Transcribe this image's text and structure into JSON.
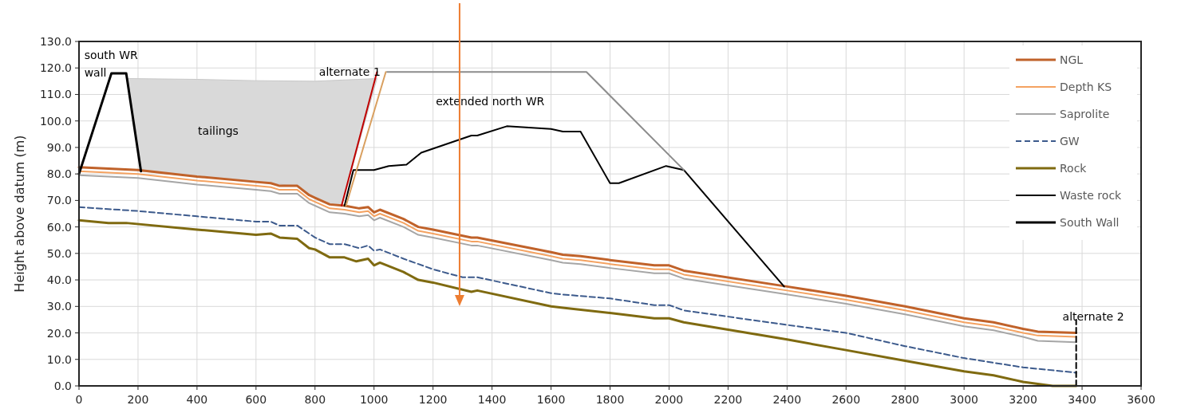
{
  "chart_data": {
    "type": "line",
    "ylabel": "Height above datum (m)",
    "xlim": [
      0,
      3600
    ],
    "ylim": [
      0,
      130
    ],
    "xticks": [
      0,
      200,
      400,
      600,
      800,
      1000,
      1200,
      1400,
      1600,
      1800,
      2000,
      2200,
      2400,
      2600,
      2800,
      3000,
      3200,
      3400,
      3600
    ],
    "yticks": [
      {
        "value": 0,
        "label": "0.0"
      },
      {
        "value": 10,
        "label": "10.0"
      },
      {
        "value": 20,
        "label": "20.0"
      },
      {
        "value": 30,
        "label": "30.0"
      },
      {
        "value": 40,
        "label": "40.0"
      },
      {
        "value": 50,
        "label": "50.0"
      },
      {
        "value": 60,
        "label": "60.0"
      },
      {
        "value": 70,
        "label": "70.0"
      },
      {
        "value": 80,
        "label": "80.0"
      },
      {
        "value": 90,
        "label": "90.0"
      },
      {
        "value": 100,
        "label": "100.0"
      },
      {
        "value": 110,
        "label": "110.0"
      },
      {
        "value": 120,
        "label": "120.0"
      },
      {
        "value": 130,
        "label": "130.0"
      }
    ],
    "grid": true,
    "legend": "top right",
    "line_style": "solid",
    "marker": "none",
    "series": [
      {
        "type": "area",
        "color": "#d9d9d9",
        "x": [
          165,
          400,
          600,
          800,
          1010,
          890,
          850,
          800,
          740,
          600,
          400,
          210
        ],
        "values": [
          116,
          115.7,
          115.2,
          115,
          116,
          68,
          68.5,
          71,
          75.5,
          77,
          79,
          81
        ]
      },
      {
        "name": "NGL",
        "color": "#c0622a",
        "x": [
          0,
          200,
          400,
          600,
          650,
          680,
          740,
          780,
          800,
          850,
          900,
          950,
          980,
          1000,
          1020,
          1100,
          1150,
          1200,
          1330,
          1350,
          1600,
          1640,
          1700,
          1800,
          1950,
          2000,
          2050,
          2400,
          2600,
          2800,
          3000,
          3100,
          3200,
          3250,
          3380
        ],
        "values": [
          82.5,
          81.5,
          79,
          77,
          76.5,
          75.5,
          75.5,
          72,
          71,
          68.5,
          68,
          67,
          67.5,
          65.5,
          66.5,
          63,
          60,
          59,
          56,
          56,
          50.5,
          49.5,
          49,
          47.5,
          45.5,
          45.5,
          43.5,
          37.5,
          34,
          30,
          25.5,
          24,
          21.5,
          20.5,
          20
        ]
      },
      {
        "name": "Depth KS",
        "color": "#f4a261",
        "x": [
          0,
          200,
          400,
          600,
          650,
          680,
          740,
          780,
          800,
          850,
          900,
          950,
          980,
          1000,
          1020,
          1100,
          1150,
          1200,
          1330,
          1350,
          1600,
          1640,
          1700,
          1800,
          1950,
          2000,
          2050,
          2400,
          2600,
          2800,
          3000,
          3100,
          3200,
          3250,
          3380
        ],
        "values": [
          81,
          80,
          77.5,
          75.5,
          75,
          74,
          74,
          70.5,
          69.5,
          67,
          66.5,
          65.5,
          66,
          64,
          65,
          61.5,
          58.5,
          57.5,
          54.5,
          54.5,
          49,
          48,
          47.5,
          46,
          44,
          44,
          42,
          36,
          32.5,
          28.5,
          24,
          22.5,
          20,
          19,
          18.5
        ]
      },
      {
        "name": "Saprolite",
        "color": "#a6a6a6",
        "x": [
          0,
          200,
          400,
          600,
          650,
          680,
          740,
          780,
          800,
          850,
          900,
          950,
          980,
          1000,
          1020,
          1100,
          1150,
          1200,
          1330,
          1350,
          1600,
          1640,
          1700,
          1800,
          1950,
          2000,
          2050,
          2400,
          2600,
          2800,
          3000,
          3100,
          3200,
          3250,
          3380
        ],
        "values": [
          79.5,
          78.5,
          76,
          74,
          73.5,
          72.5,
          72.5,
          69,
          68,
          65.5,
          65,
          64,
          64.5,
          62.5,
          63.5,
          60,
          57,
          56,
          53,
          53,
          47.5,
          46.5,
          46,
          44.5,
          42.5,
          42.5,
          40.5,
          34.5,
          31,
          27,
          22.5,
          21,
          18.5,
          17,
          16.5
        ]
      },
      {
        "name": "GW",
        "color": "#3c5a8c",
        "line_style": "dashed",
        "x": [
          0,
          200,
          400,
          600,
          650,
          680,
          740,
          800,
          850,
          900,
          950,
          980,
          1000,
          1020,
          1100,
          1200,
          1300,
          1350,
          1600,
          1640,
          1800,
          1950,
          2000,
          2050,
          2400,
          2600,
          2800,
          3000,
          3200,
          3380
        ],
        "values": [
          67.5,
          66,
          64,
          62,
          62,
          60.5,
          60.5,
          56,
          53.5,
          53.5,
          52,
          53,
          51,
          51.5,
          48,
          44,
          41,
          41,
          35,
          34.5,
          33,
          30.5,
          30.5,
          28.5,
          23,
          20,
          15,
          10.5,
          7,
          5
        ]
      },
      {
        "name": "Rock",
        "color": "#7f6a10",
        "x": [
          0,
          100,
          160,
          400,
          600,
          650,
          680,
          740,
          780,
          800,
          850,
          900,
          940,
          980,
          1000,
          1020,
          1100,
          1150,
          1200,
          1330,
          1350,
          1600,
          1640,
          1800,
          1950,
          2000,
          2050,
          2400,
          2600,
          2800,
          3000,
          3100,
          3200,
          3300,
          3380
        ],
        "values": [
          62.5,
          61.5,
          61.5,
          59,
          57,
          57.5,
          56,
          55.5,
          52,
          51.5,
          48.5,
          48.5,
          47,
          48,
          45.5,
          46.5,
          43,
          40,
          39,
          35.5,
          36,
          30,
          29.5,
          27.5,
          25.5,
          25.5,
          24,
          17.5,
          13.5,
          9.5,
          5.5,
          4,
          1.5,
          0,
          0
        ]
      },
      {
        "name": "Waste rock",
        "color": "#000000",
        "x": [
          900,
          930,
          1000,
          1050,
          1110,
          1160,
          1330,
          1350,
          1450,
          1600,
          1640,
          1700,
          1800,
          1830,
          1990,
          2050,
          2390
        ],
        "values": [
          68,
          81.5,
          81.5,
          83,
          83.5,
          88,
          94.5,
          94.5,
          98,
          97,
          96,
          96,
          76.5,
          76.5,
          83,
          81.5,
          37.5
        ]
      },
      {
        "name": "South Wall",
        "color": "#000000",
        "x": [
          0,
          110,
          160,
          210
        ],
        "values": [
          80,
          118,
          118,
          81
        ]
      },
      {
        "color": "#8c8c8c",
        "x": [
          1044,
          1720,
          2050
        ],
        "values": [
          118.5,
          118.5,
          81.5
        ]
      },
      {
        "color": "#c00000",
        "x": [
          890,
          1010
        ],
        "values": [
          68,
          118.5
        ]
      },
      {
        "color": "#d9a060",
        "x": [
          905,
          1040
        ],
        "values": [
          68,
          118.5
        ]
      },
      {
        "color": "#000000",
        "line_style": "dashed",
        "x": [
          3380,
          3380
        ],
        "values": [
          0,
          25
        ]
      }
    ],
    "ref_lines": [
      {
        "axis": "x",
        "value": 1290,
        "color": "#ed7d31"
      }
    ],
    "annotations": [
      "south WR wall",
      "tailings",
      "alternate 1",
      "extended north WR",
      "alternate 2"
    ]
  }
}
